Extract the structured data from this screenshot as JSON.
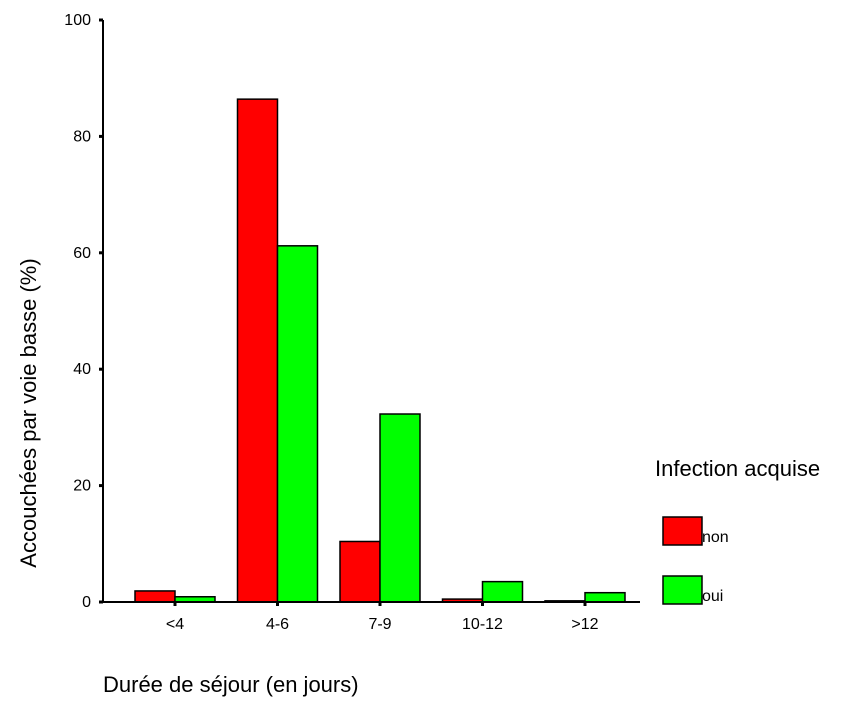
{
  "chart_data": {
    "type": "bar",
    "title": "",
    "xlabel": "Durée de séjour (en jours)",
    "ylabel": "Accouchées par voie basse (%)",
    "categories": [
      "<4",
      "4-6",
      "7-9",
      "10-12",
      ">12"
    ],
    "series": [
      {
        "name": "non",
        "color": "#ff0000",
        "values": [
          1.9,
          86.4,
          10.4,
          0.5,
          0.2
        ]
      },
      {
        "name": "oui",
        "color": "#00ff00",
        "values": [
          0.9,
          61.2,
          32.3,
          3.5,
          1.6
        ]
      }
    ],
    "ylim": [
      0,
      100
    ],
    "yticks": [
      0,
      20,
      40,
      60,
      80,
      100
    ],
    "grid": false,
    "legend": {
      "title": "Infection acquise",
      "placement": "right"
    }
  }
}
